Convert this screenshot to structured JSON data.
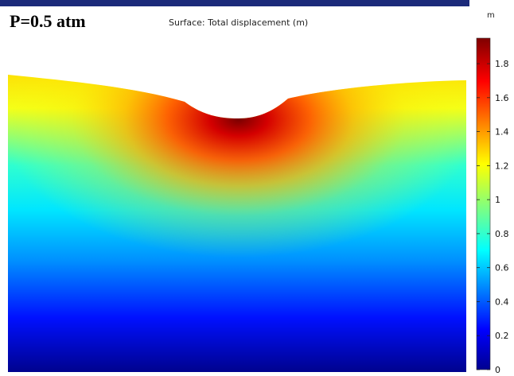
{
  "header": {
    "pressure_label": "P=0.5 atm"
  },
  "chart_data": {
    "type": "heatmap",
    "title": "Surface: Total displacement (m)",
    "colorbar": {
      "unit": "m",
      "range": [
        0,
        1.95
      ],
      "ticks": [
        0,
        0.2,
        0.4,
        0.6,
        0.8,
        1,
        1.2,
        1.4,
        1.6,
        1.8
      ],
      "tick_labels": [
        "0",
        "0.2",
        "0.4",
        "0.6",
        "0.8",
        "1",
        "1.2",
        "1.4",
        "1.6",
        "1.8"
      ],
      "colormap": "rainbow",
      "colors": [
        "#00008f",
        "#0000ff",
        "#00ffff",
        "#ffff00",
        "#ff0000",
        "#800000"
      ]
    },
    "field": {
      "max_value": 1.95,
      "min_value": 0,
      "peak_location": "top-center crater",
      "note_shape": "surface with a central depression"
    }
  }
}
